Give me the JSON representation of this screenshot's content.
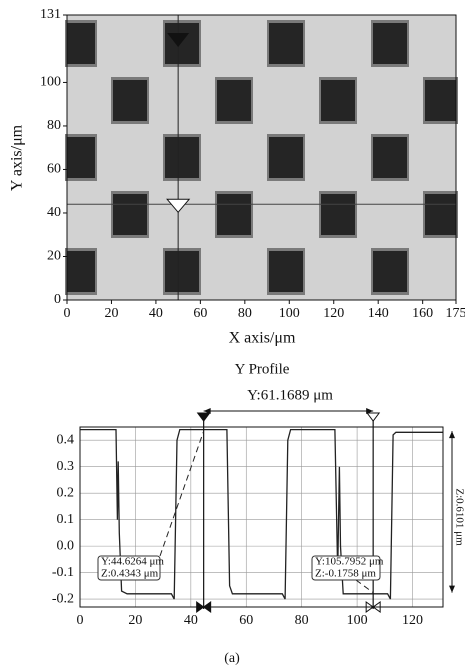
{
  "chart_data": [
    {
      "type": "image",
      "xlabel": "X axis/μm",
      "ylabel": "Y axis/μm",
      "xlim": [
        0,
        175
      ],
      "xticks": [
        0,
        20,
        40,
        60,
        80,
        100,
        120,
        140,
        160,
        175
      ],
      "ylim": [
        0,
        131
      ],
      "yticks": [
        0,
        20,
        40,
        60,
        80,
        100,
        131
      ],
      "cursor_x": 50,
      "cursor_y": 44
    },
    {
      "type": "line",
      "title": "Y Profile",
      "subtitle": "Y:61.1689 μm",
      "x": [
        0,
        13,
        13.5,
        13.8,
        14.2,
        15,
        17,
        33,
        34,
        35,
        36,
        53,
        54,
        55,
        73,
        74,
        75,
        76,
        92,
        93,
        93.6,
        94,
        95,
        111,
        112,
        113,
        114,
        131
      ],
      "series": [
        {
          "color": "#222222",
          "values": [
            0.44,
            0.44,
            0.1,
            0.32,
            0.05,
            -0.17,
            -0.18,
            -0.18,
            -0.2,
            0.4,
            0.44,
            0.44,
            -0.15,
            -0.18,
            -0.18,
            -0.2,
            0.4,
            0.44,
            0.44,
            -0.1,
            0.3,
            0.0,
            -0.18,
            -0.18,
            -0.2,
            0.42,
            0.43,
            0.43
          ]
        }
      ],
      "xlim": [
        0,
        131
      ],
      "xticks": [
        0,
        20,
        40,
        60,
        80,
        100,
        120
      ],
      "ylim": [
        -0.23,
        0.45
      ],
      "yticks": [
        -0.2,
        -0.1,
        {
          "value": 0,
          "label": "0.0"
        },
        0.1,
        0.2,
        0.3,
        0.4
      ],
      "grid": true,
      "cursors": [
        {
          "x": 44.6264,
          "value": 0.4343,
          "labels": [
            "Y:44.6264 μm",
            "Z:0.4343 μm"
          ]
        },
        {
          "x": 105.7952,
          "value": -0.1758,
          "labels": [
            "Y:105.7952 μm",
            "Z:-0.1758 μm"
          ]
        }
      ],
      "side_label": "Z:0.6101 μm"
    }
  ],
  "caption": "(a)"
}
